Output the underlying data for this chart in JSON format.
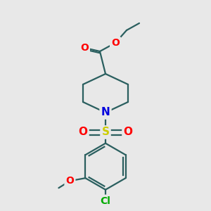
{
  "background_color": "#e8e8e8",
  "bond_color": "#2a5f5f",
  "atom_colors": {
    "O": "#ff0000",
    "N": "#0000dd",
    "S": "#cccc00",
    "Cl": "#00aa00",
    "C": "#2a5f5f"
  },
  "figsize": [
    3.0,
    3.0
  ],
  "dpi": 100,
  "bond_lw": 1.6
}
